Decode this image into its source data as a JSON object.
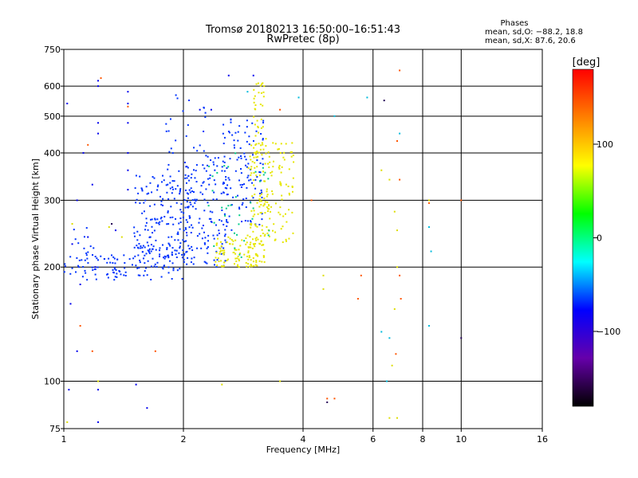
{
  "chart_data": {
    "type": "scatter",
    "title": "Tromsø 20180213 16:50:00–16:51:43",
    "subtitle": "RwPretec (8p)",
    "xlabel": "Frequency [MHz]",
    "ylabel": "Stationary phase Virtual Height [km]",
    "x_scale": "log",
    "y_scale": "log",
    "xlim": [
      1,
      16
    ],
    "ylim": [
      75,
      750
    ],
    "x_ticks": [
      1,
      2,
      4,
      6,
      8,
      10,
      16
    ],
    "y_ticks": [
      75,
      100,
      200,
      300,
      400,
      500,
      600,
      750
    ],
    "x_grid": [
      2,
      4,
      6,
      8,
      10
    ],
    "y_grid": [
      100,
      200,
      300,
      400,
      500,
      600
    ],
    "grid": true,
    "stats": {
      "heading": "Phases",
      "line1": "mean, sd,O: −88.2, 18.8",
      "line2": "mean, sd,X:  87.6, 20.6"
    },
    "colorbar": {
      "label": "[deg]",
      "range": [
        -180,
        180
      ],
      "ticks": [
        100,
        0,
        -100
      ],
      "tick_labels": [
        "100",
        "0",
        "−100"
      ],
      "colors": [
        "#ff0000",
        "#ff8000",
        "#ffff00",
        "#00ff00",
        "#00ffff",
        "#0000ff",
        "#6600aa",
        "#000000"
      ]
    },
    "series": [
      {
        "phase": -100,
        "color": "#0033ff",
        "mode": "cloud",
        "clusters": [
          {
            "f": [
              1.0,
              1.55
            ],
            "h": [
              185,
              215
            ],
            "n": 70
          },
          {
            "f": [
              1.5,
              2.0
            ],
            "h": [
              185,
              230
            ],
            "n": 60
          },
          {
            "f": [
              1.5,
              2.1
            ],
            "h": [
              210,
              350
            ],
            "n": 170
          },
          {
            "f": [
              2.0,
              2.6
            ],
            "h": [
              200,
              400
            ],
            "n": 150
          },
          {
            "f": [
              2.5,
              3.2
            ],
            "h": [
              250,
              500
            ],
            "n": 110
          },
          {
            "f": [
              1.8,
              2.3
            ],
            "h": [
              350,
              580
            ],
            "n": 30
          },
          {
            "f": [
              1.05,
              1.2
            ],
            "h": [
              215,
              255
            ],
            "n": 12
          }
        ]
      },
      {
        "phase": 100,
        "color": "#e6e600",
        "mode": "cloud",
        "clusters": [
          {
            "f": [
              2.4,
              3.2
            ],
            "h": [
              200,
              240
            ],
            "n": 120
          },
          {
            "f": [
              2.9,
              3.3
            ],
            "h": [
              240,
              420
            ],
            "n": 80
          },
          {
            "f": [
              3.0,
              3.2
            ],
            "h": [
              400,
              620
            ],
            "n": 40
          },
          {
            "f": [
              3.2,
              3.8
            ],
            "h": [
              230,
              440
            ],
            "n": 80
          }
        ]
      },
      {
        "phase": 20,
        "color": "#00cc88",
        "mode": "cloud",
        "clusters": [
          {
            "f": [
              2.3,
              3.3
            ],
            "h": [
              210,
              400
            ],
            "n": 35
          }
        ]
      },
      {
        "phase": -100,
        "color": "#0000ee",
        "mode": "points",
        "points": [
          [
            1.22,
            600
          ],
          [
            1.22,
            620
          ],
          [
            1.22,
            480
          ],
          [
            1.22,
            450
          ],
          [
            1.22,
            95
          ],
          [
            1.22,
            78
          ],
          [
            1.45,
            580
          ],
          [
            1.45,
            540
          ],
          [
            1.45,
            480
          ],
          [
            1.45,
            400
          ],
          [
            1.45,
            360
          ],
          [
            1.45,
            320
          ],
          [
            1.12,
            400
          ],
          [
            1.02,
            540
          ],
          [
            1.03,
            95
          ],
          [
            1.08,
            120
          ],
          [
            1.04,
            160
          ],
          [
            1.52,
            98
          ],
          [
            1.62,
            85
          ],
          [
            1.18,
            330
          ],
          [
            1.08,
            300
          ],
          [
            1.35,
            250
          ],
          [
            1.15,
            240
          ],
          [
            1.1,
            180
          ],
          [
            1.05,
            230
          ],
          [
            1.2,
            200
          ],
          [
            3.0,
            640
          ],
          [
            2.6,
            640
          ],
          [
            2.2,
            520
          ],
          [
            2.35,
            520
          ]
        ]
      },
      {
        "phase": 150,
        "color": "#ff5500",
        "mode": "points",
        "points": [
          [
            1.24,
            630
          ],
          [
            1.45,
            530
          ],
          [
            1.15,
            420
          ],
          [
            1.1,
            140
          ],
          [
            1.18,
            120
          ],
          [
            1.7,
            120
          ],
          [
            5.6,
            190
          ],
          [
            5.5,
            165
          ],
          [
            7.0,
            660
          ],
          [
            6.9,
            430
          ],
          [
            7.0,
            340
          ],
          [
            7.0,
            190
          ],
          [
            7.05,
            165
          ],
          [
            6.85,
            118
          ],
          [
            4.6,
            90
          ],
          [
            4.8,
            90
          ],
          [
            8.3,
            295
          ],
          [
            10.0,
            300
          ],
          [
            4.2,
            300
          ],
          [
            3.5,
            520
          ]
        ]
      },
      {
        "phase": 100,
        "color": "#dddd00",
        "mode": "points",
        "points": [
          [
            4.5,
            190
          ],
          [
            4.5,
            175
          ],
          [
            6.3,
            360
          ],
          [
            6.6,
            340
          ],
          [
            6.8,
            280
          ],
          [
            6.9,
            250
          ],
          [
            6.9,
            200
          ],
          [
            6.8,
            155
          ],
          [
            6.7,
            110
          ],
          [
            6.6,
            80
          ],
          [
            6.9,
            80
          ],
          [
            8.3,
            300
          ],
          [
            2.5,
            98
          ],
          [
            3.5,
            100
          ],
          [
            1.4,
            240
          ],
          [
            1.3,
            255
          ],
          [
            1.05,
            260
          ],
          [
            1.22,
            100
          ],
          [
            1.02,
            78
          ]
        ]
      },
      {
        "phase": -10,
        "color": "#00bbdd",
        "mode": "points",
        "points": [
          [
            4.8,
            500
          ],
          [
            5.8,
            560
          ],
          [
            6.3,
            135
          ],
          [
            6.5,
            100
          ],
          [
            6.6,
            130
          ],
          [
            8.3,
            140
          ],
          [
            8.4,
            220
          ],
          [
            8.3,
            255
          ],
          [
            2.9,
            580
          ],
          [
            7.0,
            450
          ],
          [
            3.9,
            560
          ]
        ]
      },
      {
        "phase": -150,
        "color": "#220055",
        "mode": "points",
        "points": [
          [
            4.6,
            88
          ],
          [
            6.4,
            550
          ],
          [
            10.0,
            130
          ],
          [
            1.32,
            260
          ]
        ]
      }
    ]
  }
}
